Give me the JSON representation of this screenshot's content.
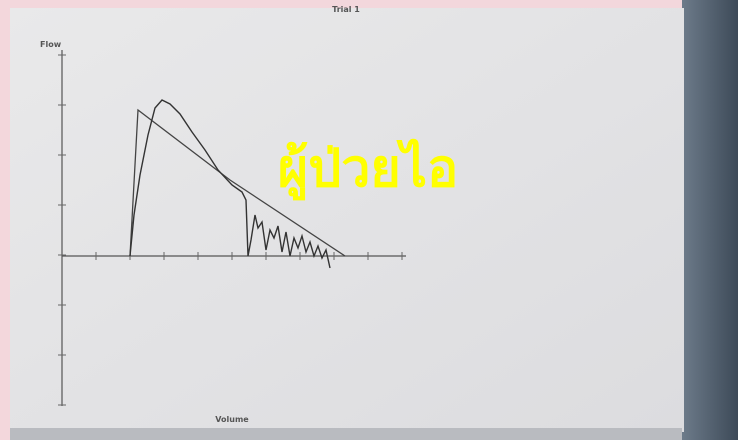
{
  "screen": {
    "title": "Trial 1",
    "y_axis_label": "Flow",
    "x_axis_label": "Volume"
  },
  "overlay_text": "ผู้ป่วยไอ"
}
